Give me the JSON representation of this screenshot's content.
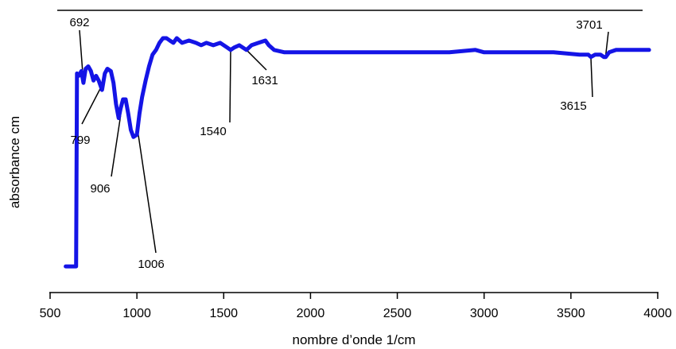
{
  "chart_data": {
    "type": "line",
    "title": "",
    "xlabel": "nombre d’onde 1/cm",
    "ylabel": "absorbance cm",
    "xlim": [
      500,
      4000
    ],
    "x_ticks": [
      500,
      1000,
      1500,
      2000,
      2500,
      3000,
      3500,
      4000
    ],
    "x_tick_labels": [
      "500",
      "1000",
      "1500",
      "2000",
      "2500",
      "3000",
      "3500",
      "4000"
    ],
    "y_scale": "relative (no tick labels)",
    "ylim": [
      0,
      1
    ],
    "grid": false,
    "legend": "none",
    "series_color": "#1414e6",
    "series": [
      {
        "x": [
          590,
          650,
          655,
          665,
          680,
          692,
          705,
          720,
          735,
          750,
          765,
          780,
          799,
          815,
          830,
          850,
          865,
          880,
          895,
          906,
          920,
          935,
          950,
          965,
          980,
          1000,
          1015,
          1030,
          1050,
          1070,
          1090,
          1110,
          1130,
          1150,
          1170,
          1190,
          1210,
          1230,
          1260,
          1300,
          1340,
          1370,
          1400,
          1440,
          1480,
          1520,
          1540,
          1560,
          1590,
          1610,
          1631,
          1660,
          1700,
          1740,
          1760,
          1790,
          1850,
          1900,
          2000,
          2200,
          2400,
          2600,
          2800,
          2950,
          3000,
          3200,
          3400,
          3550,
          3600,
          3615,
          3640,
          3670,
          3690,
          3701,
          3720,
          3760,
          3850,
          3950
        ],
        "y": [
          0.03,
          0.03,
          0.85,
          0.84,
          0.86,
          0.81,
          0.87,
          0.88,
          0.86,
          0.82,
          0.84,
          0.82,
          0.78,
          0.85,
          0.87,
          0.86,
          0.81,
          0.72,
          0.66,
          0.7,
          0.74,
          0.74,
          0.68,
          0.61,
          0.58,
          0.59,
          0.68,
          0.75,
          0.82,
          0.88,
          0.93,
          0.95,
          0.98,
          1.0,
          1.0,
          0.99,
          0.98,
          1.0,
          0.98,
          0.99,
          0.98,
          0.97,
          0.98,
          0.97,
          0.98,
          0.96,
          0.95,
          0.96,
          0.97,
          0.96,
          0.95,
          0.97,
          0.98,
          0.99,
          0.97,
          0.95,
          0.94,
          0.94,
          0.94,
          0.94,
          0.94,
          0.94,
          0.94,
          0.95,
          0.94,
          0.94,
          0.94,
          0.93,
          0.93,
          0.92,
          0.93,
          0.93,
          0.92,
          0.92,
          0.94,
          0.95,
          0.95,
          0.95
        ]
      }
    ],
    "annotations": [
      {
        "label": "692",
        "x": 692
      },
      {
        "label": "799",
        "x": 799
      },
      {
        "label": "906",
        "x": 906
      },
      {
        "label": "1006",
        "x": 1006
      },
      {
        "label": "1540",
        "x": 1540
      },
      {
        "label": "1631",
        "x": 1631
      },
      {
        "label": "3615",
        "x": 3615
      },
      {
        "label": "3701",
        "x": 3701
      }
    ]
  }
}
